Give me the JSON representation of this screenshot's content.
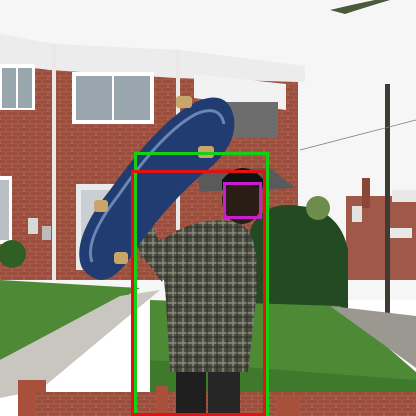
{
  "scene": {
    "colors": {
      "sky": "#f6f6f6",
      "brick": "#9c4d3c",
      "grass": "#4e8a35",
      "sidewalk": "#c9c6bf",
      "shirt": "#4d4f45"
    },
    "annotations": [
      {
        "label": "",
        "color": "#14d014"
      },
      {
        "label": "",
        "color": "#e01212"
      },
      {
        "label": "",
        "color": "#c81ecf"
      }
    ]
  }
}
